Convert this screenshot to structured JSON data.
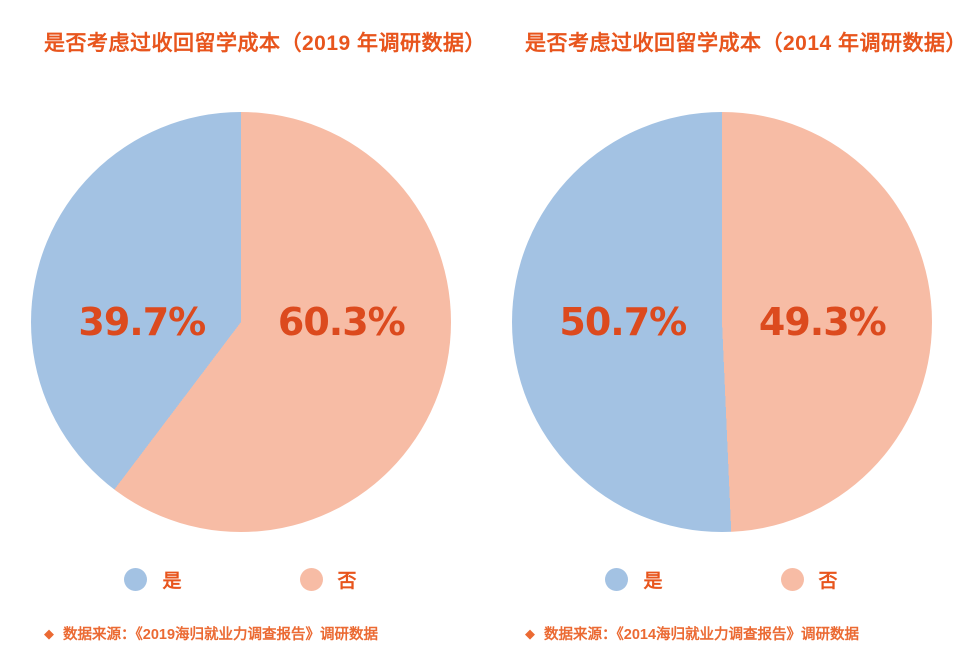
{
  "theme": {
    "background": "#FFFFFF",
    "title_color": "#E8551D",
    "percent_color": "#DC4A1E",
    "legend_text_color": "#E8551D",
    "source_text_color": "#EB6A33"
  },
  "icons": {
    "diamond_bullet": "◆"
  },
  "chart_data": [
    {
      "type": "pie",
      "title": "是否考虑过收回留学成本（2019 年调研数据）",
      "categories": [
        "是",
        "否"
      ],
      "values": [
        39.7,
        60.3
      ],
      "labels": [
        "39.7%",
        "60.3%"
      ],
      "colors": [
        "#A3C2E3",
        "#F7BCA5"
      ],
      "start_angle": "top",
      "layout": "是-left-counterclockwise, 否-right-clockwise",
      "legend_position": "bottom",
      "source_note": "数据来源：《2019海归就业力调查报告》调研数据"
    },
    {
      "type": "pie",
      "title": "是否考虑过收回留学成本（2014 年调研数据）",
      "categories": [
        "是",
        "否"
      ],
      "values": [
        50.7,
        49.3
      ],
      "labels": [
        "50.7%",
        "49.3%"
      ],
      "colors": [
        "#A3C2E3",
        "#F7BCA5"
      ],
      "start_angle": "top",
      "layout": "是-left-counterclockwise, 否-right-clockwise",
      "legend_position": "bottom",
      "source_note": "数据来源：《2014海归就业力调查报告》调研数据"
    }
  ]
}
